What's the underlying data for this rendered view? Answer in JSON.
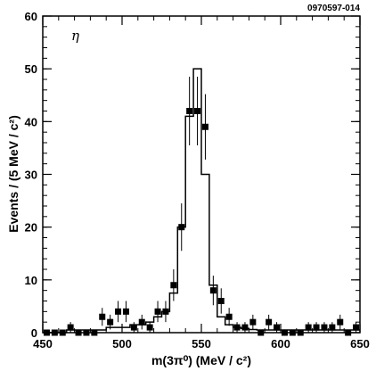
{
  "chart_data": {
    "type": "scatter",
    "id_label": "0970597-014",
    "particle_label": "η",
    "xlabel": "m(3π⁰) (MeV / c²)",
    "ylabel": "Events / (5 MeV / c²)",
    "xlim": [
      450,
      650
    ],
    "ylim": [
      0,
      60
    ],
    "xticks": [
      450,
      500,
      550,
      600,
      650
    ],
    "yticks": [
      0,
      10,
      20,
      30,
      40,
      50,
      60
    ],
    "x_minor_step": 10,
    "y_minor_step": 2,
    "series": [
      {
        "type": "points_with_errors",
        "points": [
          {
            "x": 452.5,
            "y": 0,
            "err": 0
          },
          {
            "x": 457.5,
            "y": 0,
            "err": 0
          },
          {
            "x": 462.5,
            "y": 0,
            "err": 0
          },
          {
            "x": 467.5,
            "y": 1,
            "err": 1
          },
          {
            "x": 472.5,
            "y": 0,
            "err": 0
          },
          {
            "x": 477.5,
            "y": 0,
            "err": 0
          },
          {
            "x": 482.5,
            "y": 0,
            "err": 0
          },
          {
            "x": 487.5,
            "y": 3,
            "err": 1.7
          },
          {
            "x": 492.5,
            "y": 2,
            "err": 1.4
          },
          {
            "x": 497.5,
            "y": 4,
            "err": 2
          },
          {
            "x": 502.5,
            "y": 4,
            "err": 2
          },
          {
            "x": 507.5,
            "y": 1,
            "err": 1
          },
          {
            "x": 512.5,
            "y": 2,
            "err": 1.4
          },
          {
            "x": 517.5,
            "y": 1,
            "err": 1
          },
          {
            "x": 522.5,
            "y": 4,
            "err": 2
          },
          {
            "x": 527.5,
            "y": 4,
            "err": 2
          },
          {
            "x": 532.5,
            "y": 9,
            "err": 3
          },
          {
            "x": 537.5,
            "y": 20,
            "err": 4.5
          },
          {
            "x": 542.5,
            "y": 42,
            "err": 6.5
          },
          {
            "x": 547.5,
            "y": 42,
            "err": 6.5
          },
          {
            "x": 552.5,
            "y": 39,
            "err": 6.2
          },
          {
            "x": 557.5,
            "y": 8,
            "err": 2.8
          },
          {
            "x": 562.5,
            "y": 6,
            "err": 2.4
          },
          {
            "x": 567.5,
            "y": 3,
            "err": 1.7
          },
          {
            "x": 572.5,
            "y": 1,
            "err": 1
          },
          {
            "x": 577.5,
            "y": 1,
            "err": 1
          },
          {
            "x": 582.5,
            "y": 2,
            "err": 1.4
          },
          {
            "x": 587.5,
            "y": 0,
            "err": 0
          },
          {
            "x": 592.5,
            "y": 2,
            "err": 1.4
          },
          {
            "x": 597.5,
            "y": 1,
            "err": 1
          },
          {
            "x": 602.5,
            "y": 0,
            "err": 0
          },
          {
            "x": 607.5,
            "y": 0,
            "err": 0
          },
          {
            "x": 612.5,
            "y": 0,
            "err": 0
          },
          {
            "x": 617.5,
            "y": 1,
            "err": 1
          },
          {
            "x": 622.5,
            "y": 1,
            "err": 1
          },
          {
            "x": 627.5,
            "y": 1,
            "err": 1
          },
          {
            "x": 632.5,
            "y": 1,
            "err": 1
          },
          {
            "x": 637.5,
            "y": 2,
            "err": 1.4
          },
          {
            "x": 642.5,
            "y": 0,
            "err": 0
          },
          {
            "x": 647.5,
            "y": 1,
            "err": 1
          }
        ]
      },
      {
        "type": "step_histogram",
        "bin_width": 5,
        "x_start": 450,
        "values": [
          0,
          0,
          0,
          0.5,
          0.5,
          0.5,
          0.5,
          0.5,
          1,
          1,
          1,
          1.5,
          1.5,
          2,
          3,
          4,
          7.5,
          20,
          41,
          50,
          30,
          9,
          3,
          1.5,
          1,
          0.8,
          0.6,
          0.5,
          0.5,
          0.5,
          0.5,
          0.5,
          0.5,
          0.5,
          0.5,
          0.5,
          0.5,
          0.5,
          0.5,
          0.5
        ]
      }
    ]
  }
}
